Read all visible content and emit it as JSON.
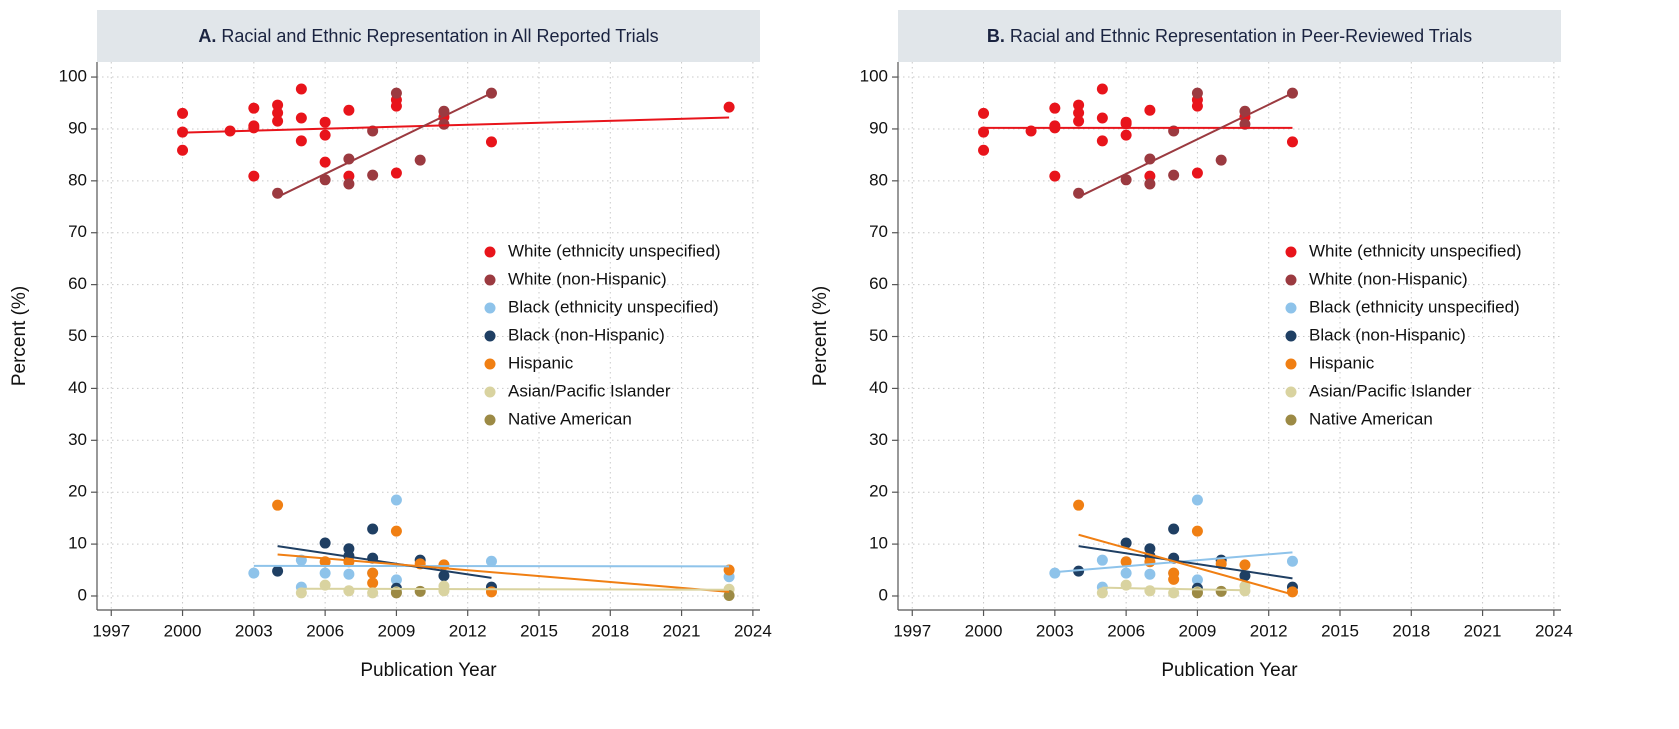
{
  "chart_data": [
    {
      "type": "scatter",
      "label": "A.",
      "title": "Racial and Ethnic Representation in All Reported Trials",
      "xlabel": "Publication Year",
      "ylabel": "Percent (%)",
      "xlim": [
        1996.4,
        2024.3
      ],
      "ylim": [
        -2.7,
        102.9
      ],
      "xticks": [
        1997,
        2000,
        2003,
        2006,
        2009,
        2012,
        2015,
        2018,
        2021,
        2024
      ],
      "yticks": [
        0,
        10,
        20,
        30,
        40,
        50,
        60,
        70,
        80,
        90,
        100
      ],
      "grid": true,
      "legend": "right",
      "series": [
        {
          "name": "White (ethnicity unspecified)",
          "color": "#e8141b",
          "x": [
            2000,
            2000,
            2000,
            2002,
            2003,
            2003,
            2003,
            2003,
            2004,
            2004,
            2004,
            2005,
            2005,
            2005,
            2006,
            2006,
            2006,
            2007,
            2007,
            2009,
            2009,
            2009,
            2011,
            2013,
            2023
          ],
          "values": [
            93.0,
            89.4,
            85.9,
            89.6,
            94.0,
            90.6,
            90.2,
            80.9,
            94.6,
            93.1,
            91.5,
            97.7,
            92.1,
            87.7,
            91.3,
            88.8,
            83.6,
            93.6,
            80.9,
            95.6,
            94.4,
            81.5,
            92.3,
            87.5,
            94.2
          ],
          "fit": {
            "x": [
              2000,
              2023
            ],
            "y": [
              89.3,
              92.2
            ]
          }
        },
        {
          "name": "White (non-Hispanic)",
          "color": "#9b3a40",
          "x": [
            2004,
            2006,
            2007,
            2007,
            2008,
            2008,
            2009,
            2010,
            2011,
            2011,
            2013
          ],
          "values": [
            77.6,
            80.2,
            84.2,
            79.4,
            89.6,
            81.1,
            96.9,
            84.0,
            93.4,
            90.9,
            96.9
          ],
          "fit": {
            "x": [
              2004,
              2013
            ],
            "y": [
              76.9,
              96.9
            ]
          }
        },
        {
          "name": "Black (ethnicity unspecified)",
          "color": "#8ec3ea",
          "x": [
            2003,
            2005,
            2005,
            2006,
            2007,
            2008,
            2009,
            2009,
            2009,
            2013,
            2023
          ],
          "values": [
            4.4,
            6.9,
            1.7,
            4.4,
            4.2,
            4.4,
            18.5,
            3.1,
            1.0,
            6.7,
            3.7
          ],
          "fit": {
            "x": [
              2003,
              2023
            ],
            "y": [
              5.8,
              5.7
            ]
          }
        },
        {
          "name": "Black (non-Hispanic)",
          "color": "#1f3f63",
          "x": [
            2004,
            2006,
            2007,
            2007,
            2008,
            2008,
            2009,
            2010,
            2011,
            2013
          ],
          "values": [
            4.8,
            10.2,
            9.1,
            7.7,
            12.9,
            7.3,
            1.5,
            6.9,
            3.9,
            1.7
          ],
          "fit": {
            "x": [
              2004,
              2013
            ],
            "y": [
              9.6,
              3.5
            ]
          }
        },
        {
          "name": "Hispanic",
          "color": "#f07f13",
          "x": [
            2004,
            2006,
            2007,
            2008,
            2008,
            2009,
            2010,
            2011,
            2013,
            2023
          ],
          "values": [
            17.5,
            6.6,
            6.6,
            4.4,
            2.5,
            12.5,
            6.2,
            6.0,
            0.8,
            5.0
          ],
          "fit": {
            "x": [
              2004,
              2023
            ],
            "y": [
              8.0,
              0.8
            ]
          }
        },
        {
          "name": "Asian/Pacific Islander",
          "color": "#d9d3a0",
          "x": [
            2005,
            2006,
            2007,
            2008,
            2009,
            2011,
            2011,
            2023
          ],
          "values": [
            0.6,
            2.1,
            1.0,
            0.6,
            0.8,
            1.0,
            1.9,
            1.3
          ],
          "fit": {
            "x": [
              2005,
              2023
            ],
            "y": [
              1.4,
              1.2
            ]
          }
        },
        {
          "name": "Native American",
          "color": "#9c8a45",
          "x": [
            2009,
            2010,
            2023
          ],
          "values": [
            0.6,
            0.9,
            0.1
          ]
        }
      ]
    },
    {
      "type": "scatter",
      "label": "B.",
      "title": "Racial and Ethnic Representation in Peer-Reviewed Trials",
      "xlabel": "Publication Year",
      "ylabel": "Percent (%)",
      "xlim": [
        1996.4,
        2024.3
      ],
      "ylim": [
        -2.7,
        102.9
      ],
      "xticks": [
        1997,
        2000,
        2003,
        2006,
        2009,
        2012,
        2015,
        2018,
        2021,
        2024
      ],
      "yticks": [
        0,
        10,
        20,
        30,
        40,
        50,
        60,
        70,
        80,
        90,
        100
      ],
      "grid": true,
      "legend": "right",
      "series": [
        {
          "name": "White (ethnicity unspecified)",
          "color": "#e8141b",
          "x": [
            2000,
            2000,
            2000,
            2002,
            2003,
            2003,
            2003,
            2003,
            2004,
            2004,
            2004,
            2005,
            2005,
            2005,
            2006,
            2006,
            2006,
            2007,
            2007,
            2009,
            2009,
            2009,
            2011,
            2013
          ],
          "values": [
            93.0,
            89.4,
            85.9,
            89.6,
            94.0,
            90.6,
            90.2,
            80.9,
            94.6,
            93.1,
            91.5,
            97.7,
            92.1,
            87.7,
            91.3,
            88.8,
            91.0,
            93.6,
            80.9,
            95.6,
            94.4,
            81.5,
            92.3,
            87.5
          ],
          "fit": {
            "x": [
              2000,
              2013
            ],
            "y": [
              90.2,
              90.2
            ]
          }
        },
        {
          "name": "White (non-Hispanic)",
          "color": "#9b3a40",
          "x": [
            2004,
            2006,
            2007,
            2007,
            2008,
            2008,
            2009,
            2010,
            2011,
            2011,
            2013
          ],
          "values": [
            77.6,
            80.2,
            84.2,
            79.4,
            89.6,
            81.1,
            96.9,
            84.0,
            93.4,
            90.9,
            96.9
          ],
          "fit": {
            "x": [
              2004,
              2013
            ],
            "y": [
              76.9,
              96.9
            ]
          }
        },
        {
          "name": "Black (ethnicity unspecified)",
          "color": "#8ec3ea",
          "x": [
            2003,
            2005,
            2005,
            2006,
            2007,
            2008,
            2009,
            2009,
            2009,
            2013
          ],
          "values": [
            4.4,
            6.9,
            1.7,
            4.4,
            4.2,
            4.4,
            18.5,
            3.1,
            1.0,
            6.7
          ],
          "fit": {
            "x": [
              2003,
              2013
            ],
            "y": [
              4.6,
              8.4
            ]
          }
        },
        {
          "name": "Black (non-Hispanic)",
          "color": "#1f3f63",
          "x": [
            2004,
            2006,
            2007,
            2007,
            2008,
            2008,
            2009,
            2010,
            2011,
            2013
          ],
          "values": [
            4.8,
            10.2,
            9.1,
            7.7,
            12.9,
            7.3,
            1.5,
            6.9,
            3.9,
            1.7
          ],
          "fit": {
            "x": [
              2004,
              2013
            ],
            "y": [
              9.6,
              3.4
            ]
          }
        },
        {
          "name": "Hispanic",
          "color": "#f07f13",
          "x": [
            2004,
            2006,
            2007,
            2008,
            2008,
            2009,
            2010,
            2011,
            2013
          ],
          "values": [
            17.5,
            6.6,
            6.6,
            4.4,
            3.2,
            12.5,
            6.2,
            6.0,
            0.8
          ],
          "fit": {
            "x": [
              2004,
              2013
            ],
            "y": [
              11.8,
              0.3
            ]
          }
        },
        {
          "name": "Asian/Pacific Islander",
          "color": "#d9d3a0",
          "x": [
            2005,
            2006,
            2007,
            2008,
            2009,
            2011,
            2011
          ],
          "values": [
            0.6,
            2.1,
            1.0,
            0.6,
            0.8,
            1.0,
            1.9
          ],
          "fit": {
            "x": [
              2005,
              2011
            ],
            "y": [
              1.6,
              1.1
            ]
          }
        },
        {
          "name": "Native American",
          "color": "#9c8a45",
          "x": [
            2009,
            2010
          ],
          "values": [
            0.6,
            0.9
          ]
        }
      ]
    }
  ]
}
